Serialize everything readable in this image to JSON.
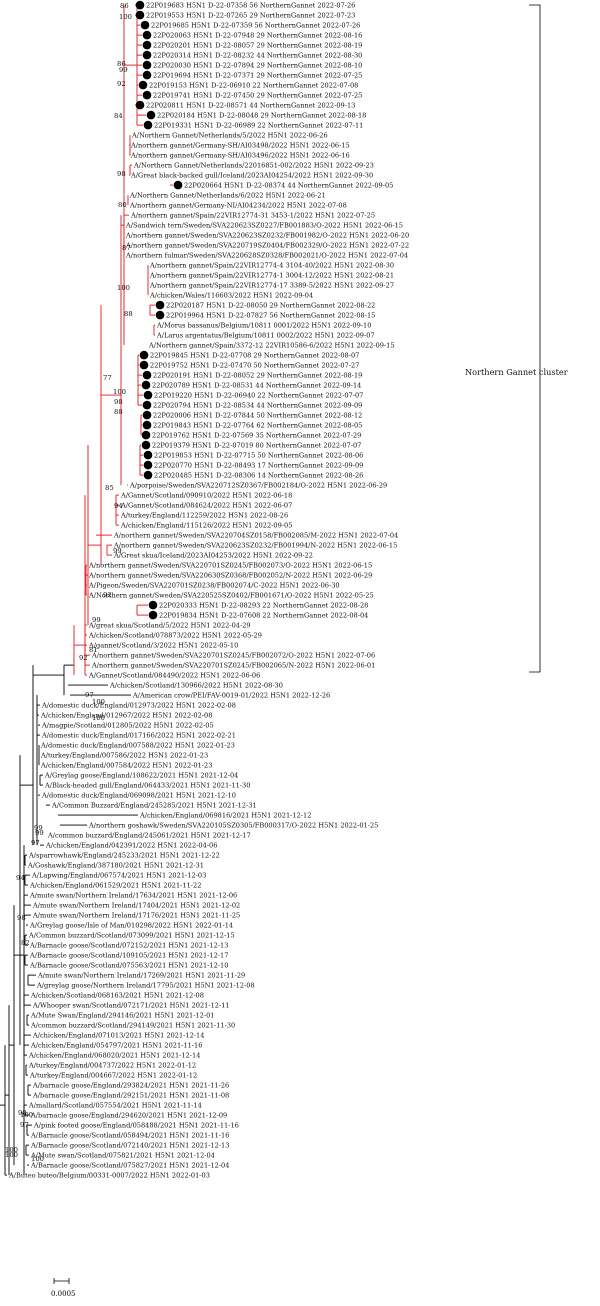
{
  "cluster": {
    "label": "Northern Gannet cluster"
  },
  "scale_bar": {
    "label": "0.0005"
  },
  "colors": {
    "highlight": "#e0181b",
    "background": "#000000",
    "study_marker": "#000000"
  },
  "red_taxa": [
    {
      "label": "22P019683 H5N1 D-22-07358 56 NorthernGannet 2022-07-26",
      "study": true
    },
    {
      "label": "22P019553 H5N1 D-22-07265 29 NorthernGannet 2022-07-23",
      "study": true
    },
    {
      "label": "22P019685 H5N1 D-22-07359 56 NorthernGannet 2022-07-26",
      "study": true
    },
    {
      "label": "22P020063 H5N1 D-22-07948 29 NorthernGannet 2022-08-16",
      "study": true
    },
    {
      "label": "22P020201 H5N1 D-22-08057 29 NorthernGannet 2022-08-19",
      "study": true
    },
    {
      "label": "22P020314 H5N1 D-22-08232 44 NorthernGannet 2022-08-30",
      "study": true
    },
    {
      "label": "22P020030 H5N1 D-22-07894 29 NorthernGannet 2022-08-10",
      "study": true
    },
    {
      "label": "22P019694 H5N1 D-22-07371 29 NorthernGannet 2022-07-25",
      "study": true
    },
    {
      "label": "22P019153 H5N1 D-22-06910 22 NorthernGannet 2022-07-08",
      "study": true
    },
    {
      "label": "22P019741 H5N1 D-22-07450 29 NorthernGannet 2022-07-25",
      "study": true
    },
    {
      "label": "22P020811 H5N1 D-22-08571 44 NorthernGannet 2022-09-13",
      "study": true
    },
    {
      "label": "22P020184 H5N1 D-22-08048 29 NorthernGannet 2022-08-18",
      "study": true
    },
    {
      "label": "22P019331 H5N1 D-22-06989 22 NorthernGannet 2022-07-11",
      "study": true
    },
    {
      "label": "A/Northern Gannet/Netherlands/5/2022 H5N1 2022-06-26",
      "study": false
    },
    {
      "label": "A/northern gannet/Germany-SH/AI03498/2022 H5N1 2022-06-15",
      "study": false
    },
    {
      "label": "A/northern gannet/Germany-SH/AI03496/2022 H5N1 2022-06-16",
      "study": false
    },
    {
      "label": "A/Northern Gannet/Netherlands/22016851-002/2022 H5N1 2022-09-23",
      "study": false
    },
    {
      "label": "A/Great black-backed gull/Iceland/2023AI04254/2022 H5N1 2022-09-30",
      "study": false
    },
    {
      "label": "22P020664 H5N1 D-22-08374 44 NorthernGannet 2022-09-05",
      "study": true
    },
    {
      "label": "A/Northern Gannet/Netherlands/6/2022 H5N1 2022-06-21",
      "study": false
    },
    {
      "label": "A/northern gannet/Germany-NI/AI04234/2022 H5N1 2022-07-08",
      "study": false
    },
    {
      "label": "A/northern gannet/Spain/22VIR12774-31 3453-1/2022 H5N1 2022-07-25",
      "study": false
    },
    {
      "label": "A/Sandwich tern/Sweden/SVA220623SZ0227/FB001883/O-2022 H5N1 2022-06-15",
      "study": false
    },
    {
      "label": "A/northern gannet/Sweden/SVA220623SZ0232/FB001982/O-2022 H5N1 2022-06-20",
      "study": false
    },
    {
      "label": "A/northern gannet/Sweden/SVA220719SZ0404/FB002329/O-2022 H5N1 2022-07-22",
      "study": false
    },
    {
      "label": "A/northern fulmar/Sweden/SVA220628SZ0328/FB002021/O-2022 H5N1 2022-07-04",
      "study": false
    },
    {
      "label": "A/northern gannet/Spain/22VIR12774-4 3104-40/2022 H5N1 2022-08-30",
      "study": false
    },
    {
      "label": "A/northern gannet/Spain/22VIR12774-1 3004-12/2022 H5N1 2022-08-21",
      "study": false
    },
    {
      "label": "A/northern gannet/Spain/22VIR12774-17 3389-5/2022 H5N1 2022-09-27",
      "study": false
    },
    {
      "label": "A/chicken/Wales/116603/2022 H5N1 2022-09-04",
      "study": false
    },
    {
      "label": "22P020187 H5N1 D-22-08050 29 NorthernGannet 2022-08-22",
      "study": true
    },
    {
      "label": "22P019964 H5N1 D-22-07827 56 NorthernGannet 2022-08-15",
      "study": true
    },
    {
      "label": "A/Morus bassanus/Belgium/10811 0001/2022 H5N1 2022-09-10",
      "study": false
    },
    {
      "label": "A/Larus argentatus/Belgium/10811 0002/2022 H5N1 2022-09-07",
      "study": false
    },
    {
      "label": "A/Northern gannet/Spain/3372-12 22VIR10586-6/2022 H5N1 2022-09-15",
      "study": false
    },
    {
      "label": "22P019845 H5N1 D-22-07708 29 NorthernGannet 2022-08-07",
      "study": true
    },
    {
      "label": "22P019752 H5N1 D-22-07470 50 NorthernGannet 2022-07-27",
      "study": true
    },
    {
      "label": "22P020191 H5N1 D-22-08052 29 NorthernGannet 2022-08-19",
      "study": true
    },
    {
      "label": "22P020789 H5N1 D-22-08531 44 NorthernGannet 2022-09-14",
      "study": true
    },
    {
      "label": "22P019220 H5N1 D-22-06940 22 NorthernGannet 2022-07-07",
      "study": true
    },
    {
      "label": "22P020794 H5N1 D-22-08534 44 NorthernGannet 2022-09-09",
      "study": true
    },
    {
      "label": "22P020006 H5N1 D-22-07844 50 NorthernGannet 2022-08-12",
      "study": true
    },
    {
      "label": "22P019843 H5N1 D-22-07764 62 NorthernGannet 2022-08-05",
      "study": true
    },
    {
      "label": "22P019762 H5N1 D-22-07569 35 NorthernGannet 2022-07-29",
      "study": true
    },
    {
      "label": "22P019379 H5N1 D-22-07019 80 NorthernGannet 2022-07-07",
      "study": true
    },
    {
      "label": "22P019853 H5N1 D-22-07715 50 NorthernGannet 2022-08-06",
      "study": true
    },
    {
      "label": "22P020770 H5N1 D-22-08493 17 NorthernGannet 2022-09-09",
      "study": true
    },
    {
      "label": "22P020485 H5N1 D-22-08306 14 NorthernGannet 2022-08-26",
      "study": true
    },
    {
      "label": "A/porpoise/Sweden/SVA220712SZ0367/FB002184/O-2022 H5N1 2022-06-29",
      "study": false
    },
    {
      "label": "A/Gannet/Scotland/090910/2022 H5N1 2022-06-18",
      "study": false
    },
    {
      "label": "A/Gannet/Scotland/084624/2022 H5N1 2022-06-07",
      "study": false
    },
    {
      "label": "A/turkey/England/112259/2022 H5N1 2022-08-26",
      "study": false
    },
    {
      "label": "A/chicken/England/115126/2022 H5N1 2022-09-05",
      "study": false
    },
    {
      "label": "A/northern gannet/Sweden/SVA220704SZ0158/FB002085/M-2022 H5N1 2022-07-04",
      "study": false
    },
    {
      "label": "A/northern gannet/Sweden/SVA220623SZ0232/FB001994/N-2022 H5N1 2022-06-15",
      "study": false
    },
    {
      "label": "A/Great skua/Iceland/2023AI04253/2022 H5N1 2022-09-22",
      "study": false
    },
    {
      "label": "A/northern gannet/Sweden/SVA220701SZ0245/FB002073/O-2022 H5N1 2022-06-15",
      "study": false
    },
    {
      "label": "A/northern gannet/Sweden/SVA220630SZ0368/FB002052/N-2022 H5N1 2022-06-29",
      "study": false
    },
    {
      "label": "A/Pigeon/Sweden/SVA220701SZ0238/FB002074/C-2022 H5N1 2022-06-30",
      "study": false
    },
    {
      "label": "A/Northern gannet/Sweden/SVA220525SZ0402/FB001671/O-2022 H5N1 2022-05-25",
      "study": false
    },
    {
      "label": "22P020333 H5N1 D-22-08293 22 NorthernGannet 2022-08-28",
      "study": true
    },
    {
      "label": "22P019834 H5N1 D-22-07608 22 NorthernGannet 2022-08-04",
      "study": true
    },
    {
      "label": "A/great skua/Scotland/5/2022 H5N1 2022-04-29",
      "study": false
    },
    {
      "label": "A/chicken/Scotland/078873/2022 H5N1 2022-05-29",
      "study": false
    },
    {
      "label": "A/gannet/Scotland/3/2022 H5N1 2022-05-10",
      "study": false
    },
    {
      "label": "A/northern gannet/Sweden/SVA220701SZ0245/FB002072/O-2022 H5N1 2022-07-06",
      "study": false
    },
    {
      "label": "A/northern gannet/Sweden/SVA220701SZ0245/FB002065/N-2022 H5N1 2022-06-01",
      "study": false
    },
    {
      "label": "A/Gannet/Scotland/084490/2022 H5N1 2022-06-06",
      "study": false
    }
  ],
  "black_taxa": [
    "A/chicken/Scotland/130966/2022 H5N1 2022-08-30",
    "A/American crow/PEI/FAV-0019-01/2022 H5N1 2022-12-26",
    "A/domestic duck/England/012973/2022 H5N1 2022-02-08",
    "A/chicken/England/012967/2022 H5N1 2022-02-08",
    "A/magpie/Scotland/012805/2022 H5N1 2022-02-05",
    "A/domestic duck/England/017166/2022 H5N1 2022-02-21",
    "A/domestic duck/England/007588/2022 H5N1 2022-01-23",
    "A/turkey/England/007586/2022 H5N1 2022-01-23",
    "A/chicken/England/007584/2022 H5N1 2022-01-23",
    "A/Greylag goose/England/108622/2021 H5N1 2021-12-04",
    "A/Black-headed gull/England/064433/2021 H5N1 2021-11-30",
    "A/domestic duck/England/069098/2021 H5N1 2021-12-10",
    "A/Common Buzzard/England/245285/2021 H5N1 2021-12-31",
    "A/chicken/England/069816/2021 H5N1 2021-12-12",
    "A/northern goshawk/Sweden/SVA220105SZ0305/FB000317/O-2022 H5N1 2022-01-25",
    "A/common buzzard/England/245061/2021 H5N1 2021-12-17",
    "A/chicken/England/042391/2022 H5N1 2022-04-06",
    "A/sparrowhawk/England/245233/2021 H5N1 2021-12-22",
    "A/Goshawk/England/387180/2021 H5N1 2021-12-31",
    "A/Lapwing/England/067574/2021 H5N1 2021-12-03",
    "A/chicken/England/061529/2021 H5N1 2021-11-22",
    "A/mute swan/Northern Ireland/17634/2021 H5N1 2021-12-06",
    "A/mute swan/Northern Ireland/17404/2021 H5N1 2021-12-02",
    "A/mute swan/Northern Ireland/17176/2021 H5N1 2021-11-25",
    "A/Greylag goose/Isle of Man/010298/2022 H5N1 2022-01-14",
    "A/Common buzzard/Scotland/073099/2021 H5N1 2021-12-15",
    "A/Barnacle goose/Scotland/072152/2021 H5N1 2021-12-13",
    "A/Barnacle goose/Scotland/109105/2021 H5N1 2021-12-17",
    "A/Barnacle goose/Scotland/075563/2021 H5N1 2021-12-10",
    "A/mute swan/Northern Ireland/17269/2021 H5N1 2021-11-29",
    "A/greylag goose/Northern Ireland/17795/2021 H5N1 2021-12-08",
    "A/chicken/Scotland/068163/2021 H5N1 2021-12-08",
    "A/Whooper swan/Scotland/072171/2021 H5N1 2021-12-11",
    "A/Mute Swan/England/294146/2021 H5N1 2021-12-01",
    "A/common buzzard/Scotland/294149/2021 H5N1 2021-11-30",
    "A/chicken/England/071013/2021 H5N1 2021-12-14",
    "A/chicken/England/054797/2021 H5N1 2021-11-16",
    "A/chicken/England/068020/2021 H5N1 2021-12-14",
    "A/turkey/England/004737/2022 H5N1 2022-01-12",
    "A/turkey/England/004667/2022 H5N1 2022-01-12",
    "A/barnacle goose/England/293824/2021 H5N1 2021-11-26",
    "A/barnacle goose/England/292151/2021 H5N1 2021-11-08",
    "A/mallard/Scotland/057554/2021 H5N1 2021-11-14",
    "A/barnacle goose/England/294620/2021 H5N1 2021-12-09",
    "A/pink footed goose/England/058488/2021 H5N1 2021-11-16",
    "A/Barnacle goose/Scotland/058494/2021 H5N1 2021-11-16",
    "A/Barnacle goose/Scotland/072140/2021 H5N1 2021-12-13",
    "A/Mute swan/Scotland/075821/2021 H5N1 2021-12-04",
    "A/Barnacle goose/Scotland/075827/2021 H5N1 2021-12-04",
    "A/Buteo buteo/Belgium/00331-0007/2022 H5N1 2022-01-03"
  ],
  "bootstrap_values": [
    "86",
    "100",
    "86",
    "99",
    "92",
    "84",
    "98",
    "80",
    "87",
    "77",
    "100",
    "88",
    "100",
    "98",
    "88",
    "85",
    "94",
    "99",
    "99",
    "92",
    "81",
    "92",
    "100",
    "97",
    "100",
    "99",
    "99",
    "97",
    "94",
    "98",
    "82",
    "100",
    "98",
    "97",
    "100",
    "100",
    "100"
  ]
}
